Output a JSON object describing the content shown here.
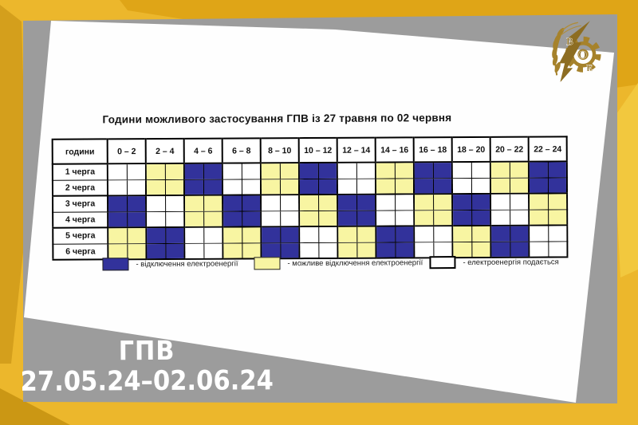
{
  "card": {
    "title": "Години можливого застосування ГПВ із 27 травня по 02 червня",
    "table": {
      "corner_label": "години",
      "columns": [
        "0 – 2",
        "2 – 4",
        "4 – 6",
        "6 – 8",
        "8 – 10",
        "10 – 12",
        "12 – 14",
        "14 – 16",
        "16 – 18",
        "18 – 20",
        "20 – 22",
        "22 – 24"
      ],
      "rows": [
        {
          "label": "1 черга",
          "slots": [
            "on",
            "maybe",
            "off",
            "on",
            "maybe",
            "off",
            "on",
            "maybe",
            "off",
            "on",
            "maybe",
            "off"
          ]
        },
        {
          "label": "2 черга",
          "slots": [
            "on",
            "maybe",
            "off",
            "on",
            "maybe",
            "off",
            "on",
            "maybe",
            "off",
            "on",
            "maybe",
            "off"
          ]
        },
        {
          "label": "3 черга",
          "slots": [
            "off",
            "on",
            "maybe",
            "off",
            "on",
            "maybe",
            "off",
            "on",
            "maybe",
            "off",
            "on",
            "maybe"
          ]
        },
        {
          "label": "4 черга",
          "slots": [
            "off",
            "on",
            "maybe",
            "off",
            "on",
            "maybe",
            "off",
            "on",
            "maybe",
            "off",
            "on",
            "maybe"
          ]
        },
        {
          "label": "5 черга",
          "slots": [
            "maybe",
            "off",
            "on",
            "maybe",
            "off",
            "on",
            "maybe",
            "off",
            "on",
            "maybe",
            "off",
            "on"
          ]
        },
        {
          "label": "6 черга",
          "slots": [
            "maybe",
            "off",
            "on",
            "maybe",
            "off",
            "on",
            "maybe",
            "off",
            "on",
            "maybe",
            "off",
            "on"
          ]
        }
      ]
    },
    "legend": [
      {
        "state": "off",
        "label": "- відключення електроенергії"
      },
      {
        "state": "maybe",
        "label": "- можливе відключення електроенергії"
      },
      {
        "state": "on",
        "label": "- електроенергія подається"
      }
    ]
  },
  "footer": {
    "line1": "ГПВ",
    "line2": "27.05.24–02.06.24"
  },
  "logo": {
    "letters": "ВОЕ"
  },
  "colors": {
    "states": {
      "off": "#32329b",
      "maybe": "#f8f5a2",
      "on": "#ffffff"
    },
    "background_yellow": "#e7b02a",
    "backdrop_gray": "#9c9c9c",
    "card_white": "#fefefe",
    "logo_gold": "#a6822b",
    "footer_text": "#ffffff"
  }
}
